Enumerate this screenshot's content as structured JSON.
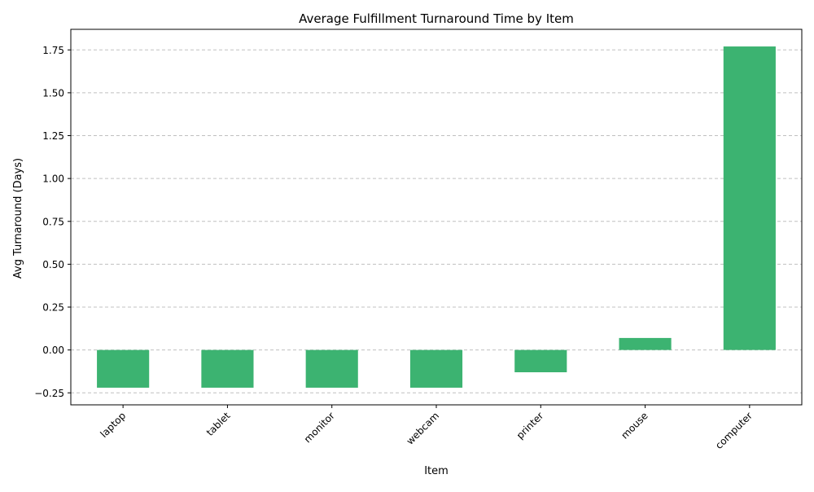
{
  "chart_data": {
    "type": "bar",
    "title": "Average Fulfillment Turnaround Time by Item",
    "xlabel": "Item",
    "ylabel": "Avg Turnaround (Days)",
    "categories": [
      "laptop",
      "tablet",
      "monitor",
      "webcam",
      "printer",
      "mouse",
      "computer"
    ],
    "values": [
      -0.22,
      -0.22,
      -0.22,
      -0.22,
      -0.13,
      0.07,
      1.77
    ],
    "ylim": [
      -0.32,
      1.87
    ],
    "yticks": [
      "−0.25",
      "0.00",
      "0.25",
      "0.50",
      "0.75",
      "1.00",
      "1.25",
      "1.50",
      "1.75"
    ],
    "ytick_values": [
      -0.25,
      0,
      0.25,
      0.5,
      0.75,
      1.0,
      1.25,
      1.5,
      1.75
    ],
    "grid": "y-dashed",
    "bar_color": "#3cb371",
    "grid_color": "#c0c0c0"
  }
}
